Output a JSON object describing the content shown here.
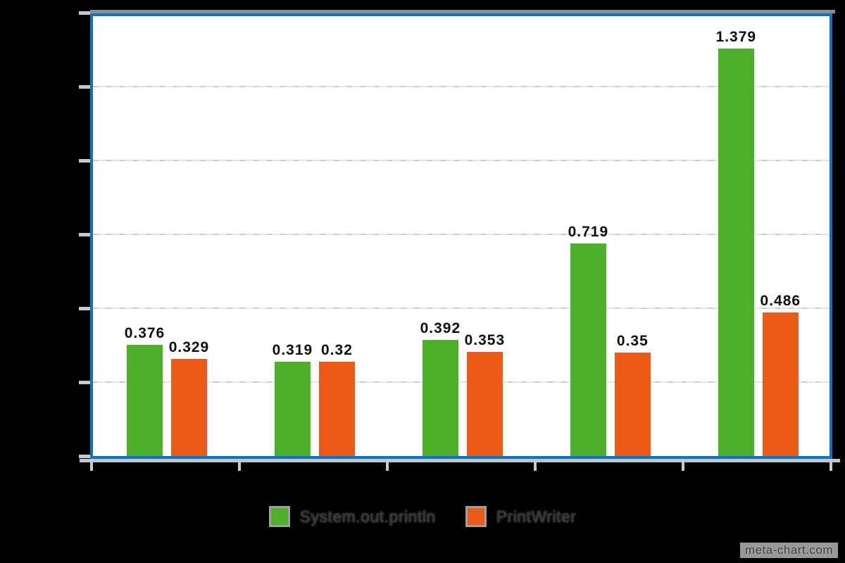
{
  "chart_data": {
    "type": "bar",
    "title": "",
    "categories": [
      "",
      "",
      "",
      "",
      ""
    ],
    "series": [
      {
        "name": "System.out.println",
        "color": "#4cb02b",
        "values": [
          0.376,
          0.319,
          0.392,
          0.719,
          1.379
        ]
      },
      {
        "name": "PrintWriter",
        "color": "#ec5a15",
        "values": [
          0.329,
          0.32,
          0.353,
          0.35,
          0.486
        ]
      }
    ],
    "value_labels": [
      [
        "0.376",
        "0.319",
        "0.392",
        "0.719",
        "1.379"
      ],
      [
        "0.329",
        "0.32",
        "0.353",
        "0.35",
        "0.486"
      ]
    ],
    "ylim": [
      0,
      1.5
    ],
    "ytick_step": 0.25,
    "grid": true,
    "axis_tick_labels_visible": false,
    "legend_position": "bottom"
  },
  "watermark": "meta-chart.com",
  "colors": {
    "background": "#000000",
    "plot_background": "#ffffff",
    "frame_blue": "#1273bd",
    "frame_shadow": "#8c9094",
    "gridline": "#d9dde0",
    "tick": "#c6cbd0",
    "bar_green": "#4cb02b",
    "bar_orange": "#ec5a15",
    "value_label_text": "#0d0d0d",
    "legend_text": "#383838"
  }
}
